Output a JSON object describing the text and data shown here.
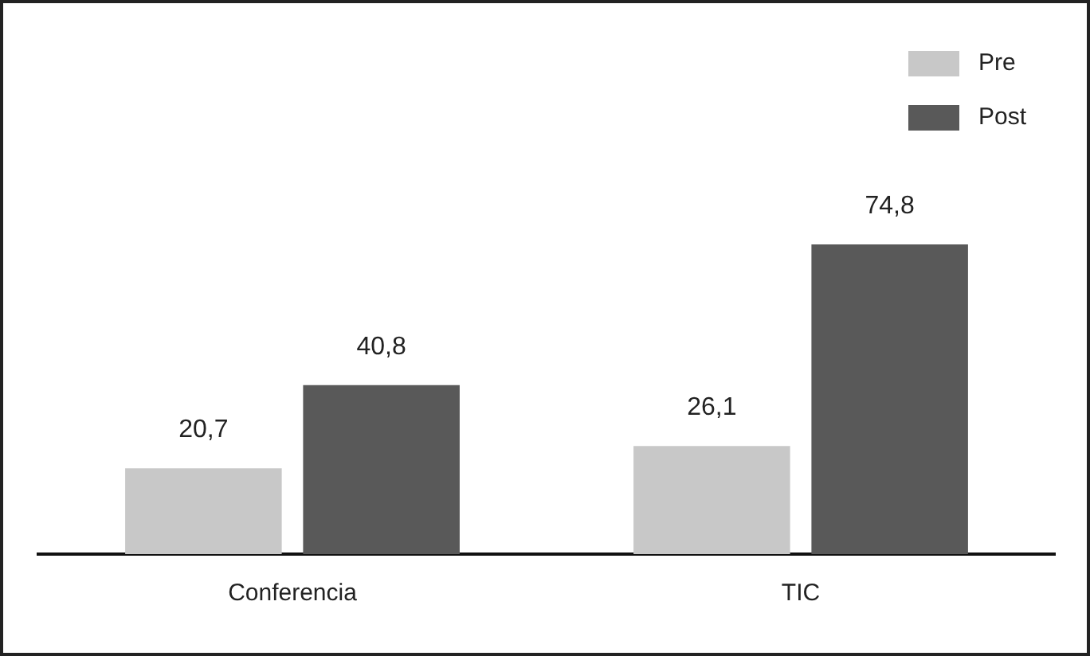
{
  "chart_data": {
    "type": "bar",
    "categories": [
      "Conferencia",
      "TIC"
    ],
    "series": [
      {
        "name": "Pre",
        "color": "#c8c8c8",
        "values": [
          20.7,
          26.1
        ],
        "value_labels": [
          "20,7",
          "26,1"
        ]
      },
      {
        "name": "Post",
        "color": "#595959",
        "values": [
          40.8,
          74.8
        ],
        "value_labels": [
          "40,8",
          "74,8"
        ]
      }
    ],
    "legend": "top right",
    "grid": false,
    "tick_labels": "x"
  }
}
